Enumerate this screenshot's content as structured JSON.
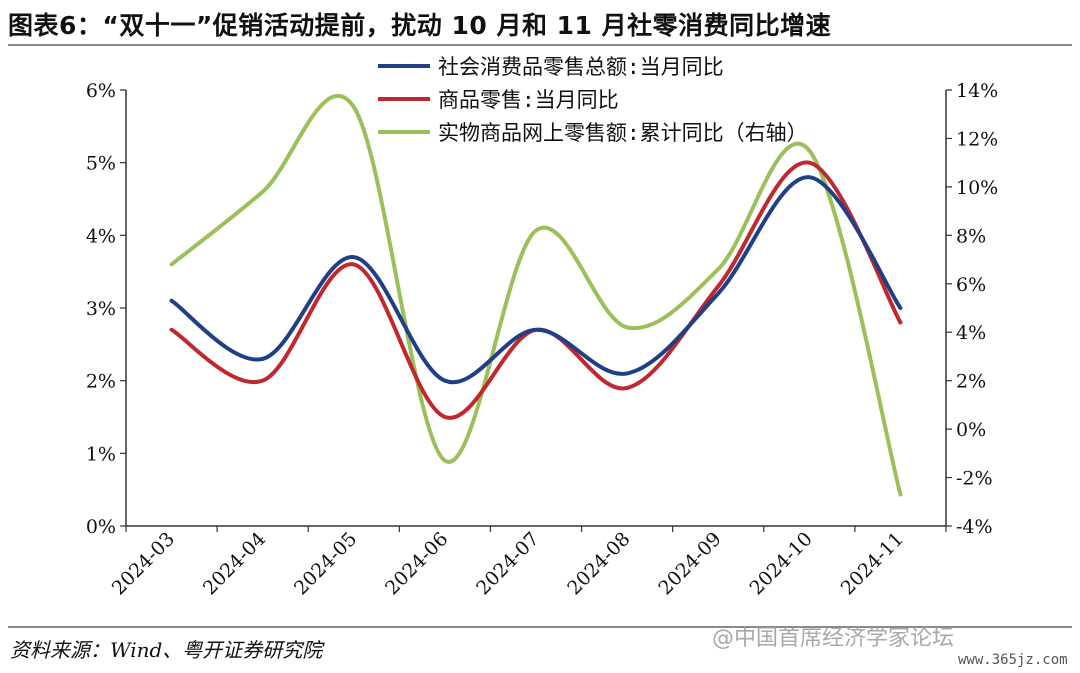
{
  "header": {
    "title": "图表6：“双十一”促销活动提前，扰动 10 月和 11 月社零消费同比增速"
  },
  "footer": {
    "source": "资料来源：Wind、粤开证券研究院",
    "watermark": "@中国首席经济学家论坛",
    "watermark_url": "www.365jz.com"
  },
  "chart_data": {
    "type": "line",
    "title": "",
    "categories": [
      "2024-03",
      "2024-04",
      "2024-05",
      "2024-06",
      "2024-07",
      "2024-08",
      "2024-09",
      "2024-10",
      "2024-11"
    ],
    "left_axis": {
      "range": [
        0,
        6
      ],
      "ticks": [
        0,
        1,
        2,
        3,
        4,
        5,
        6
      ],
      "tick_labels": [
        "0%",
        "1%",
        "2%",
        "3%",
        "4%",
        "5%",
        "6%"
      ]
    },
    "right_axis": {
      "range": [
        -4,
        14
      ],
      "ticks": [
        -4,
        -2,
        0,
        2,
        4,
        6,
        8,
        10,
        12,
        14
      ],
      "tick_labels": [
        "-4%",
        "-2%",
        "0%",
        "2%",
        "4%",
        "6%",
        "8%",
        "10%",
        "12%",
        "14%"
      ]
    },
    "grid": false,
    "legend_position": "top-center",
    "series": [
      {
        "name": "社会消费品零售总额:当月同比",
        "axis": "left",
        "color": "#1f3f86",
        "values": [
          3.1,
          2.3,
          3.7,
          2.0,
          2.7,
          2.1,
          3.2,
          4.8,
          3.0
        ]
      },
      {
        "name": "商品零售:当月同比",
        "axis": "left",
        "color": "#c0282d",
        "values": [
          2.7,
          2.0,
          3.6,
          1.5,
          2.7,
          1.9,
          3.3,
          5.0,
          2.8
        ]
      },
      {
        "name": "实物商品网上零售额:累计同比（右轴）",
        "axis": "right",
        "color": "#9bbf5a",
        "values": [
          6.8,
          9.8,
          13.3,
          -1.3,
          8.2,
          4.2,
          6.6,
          11.5,
          -2.7
        ]
      }
    ]
  }
}
